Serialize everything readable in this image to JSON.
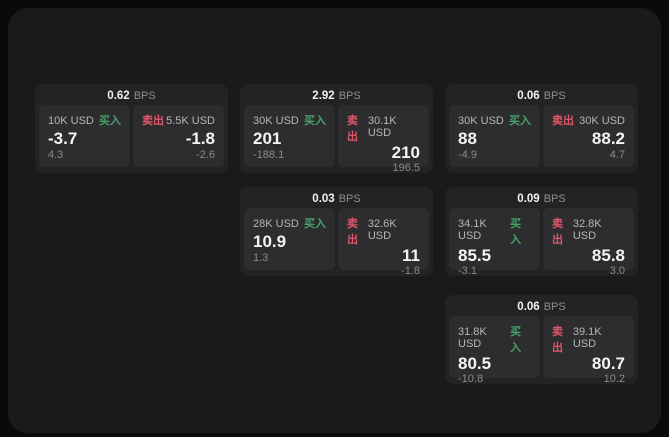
{
  "colors": {
    "buy": "#46a269",
    "sell": "#e25669",
    "page_bg": "#0a0a0b",
    "panel_bg": "#1a1a1b",
    "card_bg": "#232325",
    "tile_bg": "#2d2d2f"
  },
  "labels": {
    "bps": "BPS",
    "buy": "买入",
    "sell": "卖出"
  },
  "cards": [
    {
      "bps": "0.62",
      "buy": {
        "size": "10K USD",
        "price": "-3.7",
        "delta": "4.3"
      },
      "sell": {
        "size": "5.5K USD",
        "price": "-1.8",
        "delta": "-2.6"
      }
    },
    {
      "bps": "2.92",
      "buy": {
        "size": "30K USD",
        "price": "201",
        "delta": "-188.1"
      },
      "sell": {
        "size": "30.1K USD",
        "price": "210",
        "delta": "196.5"
      }
    },
    {
      "bps": "0.06",
      "buy": {
        "size": "30K USD",
        "price": "88",
        "delta": "-4.9"
      },
      "sell": {
        "size": "30K USD",
        "price": "88.2",
        "delta": "4.7"
      }
    },
    {
      "bps": "0.03",
      "buy": {
        "size": "28K USD",
        "price": "10.9",
        "delta": "1.3"
      },
      "sell": {
        "size": "32.6K USD",
        "price": "11",
        "delta": "-1.8"
      }
    },
    {
      "bps": "0.09",
      "buy": {
        "size": "34.1K USD",
        "price": "85.5",
        "delta": "-3.1"
      },
      "sell": {
        "size": "32.8K USD",
        "price": "85.8",
        "delta": "3.0"
      }
    },
    {
      "bps": "0.06",
      "buy": {
        "size": "31.8K USD",
        "price": "80.5",
        "delta": "-10.8"
      },
      "sell": {
        "size": "39.1K USD",
        "price": "80.7",
        "delta": "10.2"
      }
    }
  ]
}
